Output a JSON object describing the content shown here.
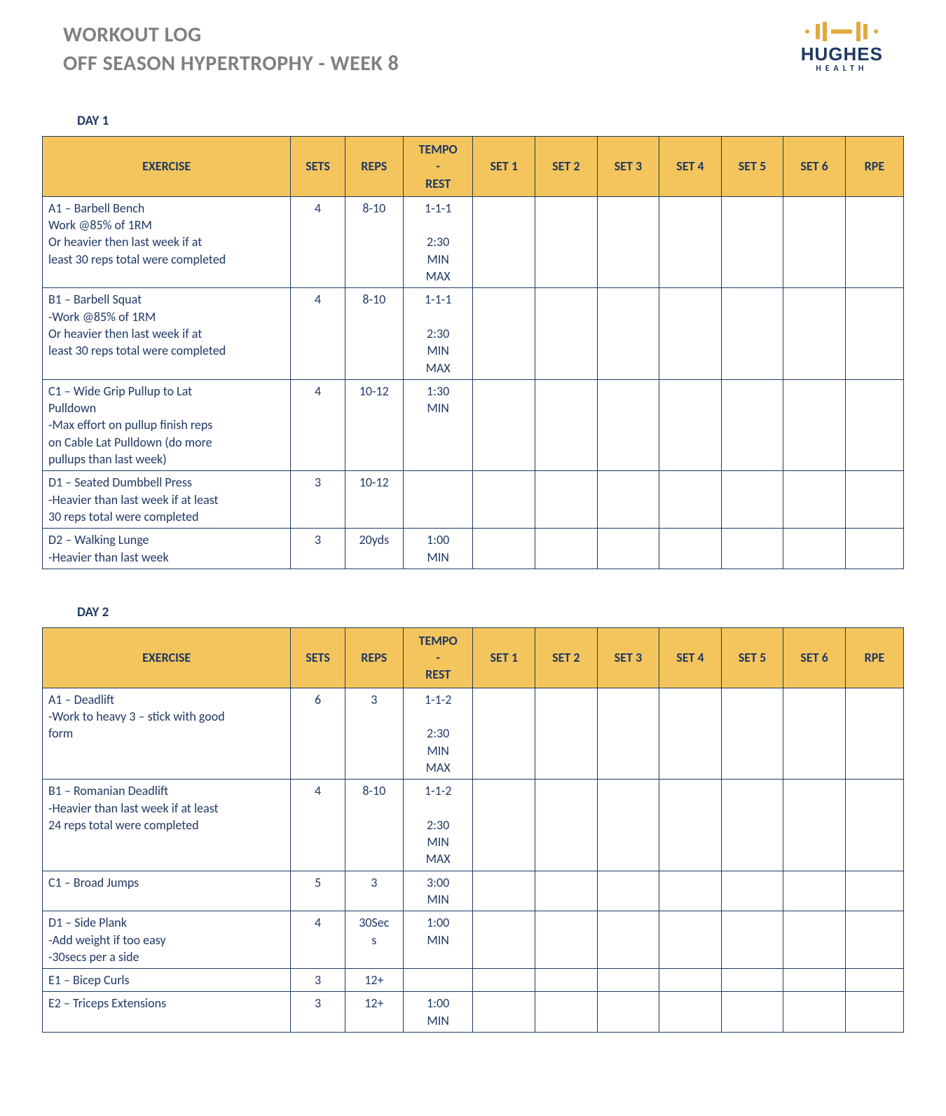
{
  "colors": {
    "text": "#1f3864",
    "title_gray": "#808080",
    "header_bg": "#f4c55c",
    "border": "#1f3864",
    "logo_accent": "#e1a93b",
    "logo_dark": "#1f3864",
    "background": "#ffffff"
  },
  "header": {
    "title_line1": "WORKOUT LOG",
    "title_line2": "OFF SEASON HYPERTROPHY - WEEK 8",
    "logo_name": "HUGHES",
    "logo_sub": "HEALTH"
  },
  "columns": {
    "exercise": "EXERCISE",
    "sets": "SETS",
    "reps": "REPS",
    "tempo_rest_top": "TEMPO",
    "tempo_rest_mid": "-",
    "tempo_rest_bot": "REST",
    "set1": "SET 1",
    "set2": "SET 2",
    "set3": "SET 3",
    "set4": "SET 4",
    "set5": "SET 5",
    "set6": "SET 6",
    "rpe": "RPE"
  },
  "days": [
    {
      "label": "DAY 1",
      "rows": [
        {
          "exercise": [
            "A1 – Barbell Bench",
            "Work @85% of 1RM",
            "Or heavier then last week if at",
            "least 30 reps total were completed"
          ],
          "sets": "4",
          "reps": "8-10",
          "tempo_rest": [
            "1-1-1",
            "",
            "2:30",
            "MIN",
            "MAX"
          ],
          "pad": false
        },
        {
          "exercise": [
            "B1 – Barbell Squat",
            "-Work @85% of 1RM",
            "Or heavier then last week if at",
            "least 30 reps total were completed"
          ],
          "sets": "4",
          "reps": "8-10",
          "tempo_rest": [
            "1-1-1",
            "",
            "2:30",
            "MIN",
            "MAX"
          ],
          "pad": false
        },
        {
          "exercise": [
            "C1 – Wide Grip Pullup to Lat",
            "Pulldown",
            "-Max effort on pullup finish reps",
            "on Cable Lat Pulldown (do more",
            "pullups than last week)"
          ],
          "sets": "4",
          "reps": "10-12",
          "tempo_rest": [
            "1:30",
            "MIN"
          ],
          "pad": true
        },
        {
          "exercise": [
            "D1 – Seated Dumbbell Press",
            "-Heavier than last week if at least",
            "30 reps total were completed"
          ],
          "sets": "3",
          "reps": "10-12",
          "tempo_rest": [],
          "pad": true
        },
        {
          "exercise": [
            "D2 – Walking Lunge",
            "-Heavier than last week"
          ],
          "sets": "3",
          "reps": "20yds",
          "tempo_rest": [
            "1:00",
            "MIN"
          ],
          "pad": true
        }
      ]
    },
    {
      "label": "DAY 2",
      "rows": [
        {
          "exercise": [
            "A1 – Deadlift",
            "-Work to heavy 3 – stick with good",
            "form"
          ],
          "sets": "6",
          "reps": "3",
          "tempo_rest": [
            "1-1-2",
            "",
            "2:30",
            "MIN",
            "MAX"
          ],
          "pad": false
        },
        {
          "exercise": [
            "B1 – Romanian Deadlift",
            "-Heavier than last week if at least",
            "24 reps total were completed"
          ],
          "sets": "4",
          "reps": "8-10",
          "tempo_rest": [
            "1-1-2",
            "",
            "2:30",
            "MIN",
            "MAX"
          ],
          "pad": false
        },
        {
          "exercise": [
            "C1 – Broad Jumps"
          ],
          "sets": "5",
          "reps": "3",
          "tempo_rest": [
            "3:00",
            "MIN"
          ],
          "pad": false
        },
        {
          "exercise": [
            "D1 – Side Plank",
            "-Add weight if too easy",
            "-30secs per a side"
          ],
          "sets": "4",
          "reps": "30Secs",
          "tempo_rest": [
            "1:00",
            "MIN"
          ],
          "pad": true
        },
        {
          "exercise": [
            "E1 – Bicep Curls"
          ],
          "sets": "3",
          "reps": "12+",
          "tempo_rest": [],
          "pad": true
        },
        {
          "exercise": [
            "E2 – Triceps Extensions"
          ],
          "sets": "3",
          "reps": "12+",
          "tempo_rest": [
            "1:00",
            "MIN"
          ],
          "pad": false
        }
      ]
    }
  ]
}
